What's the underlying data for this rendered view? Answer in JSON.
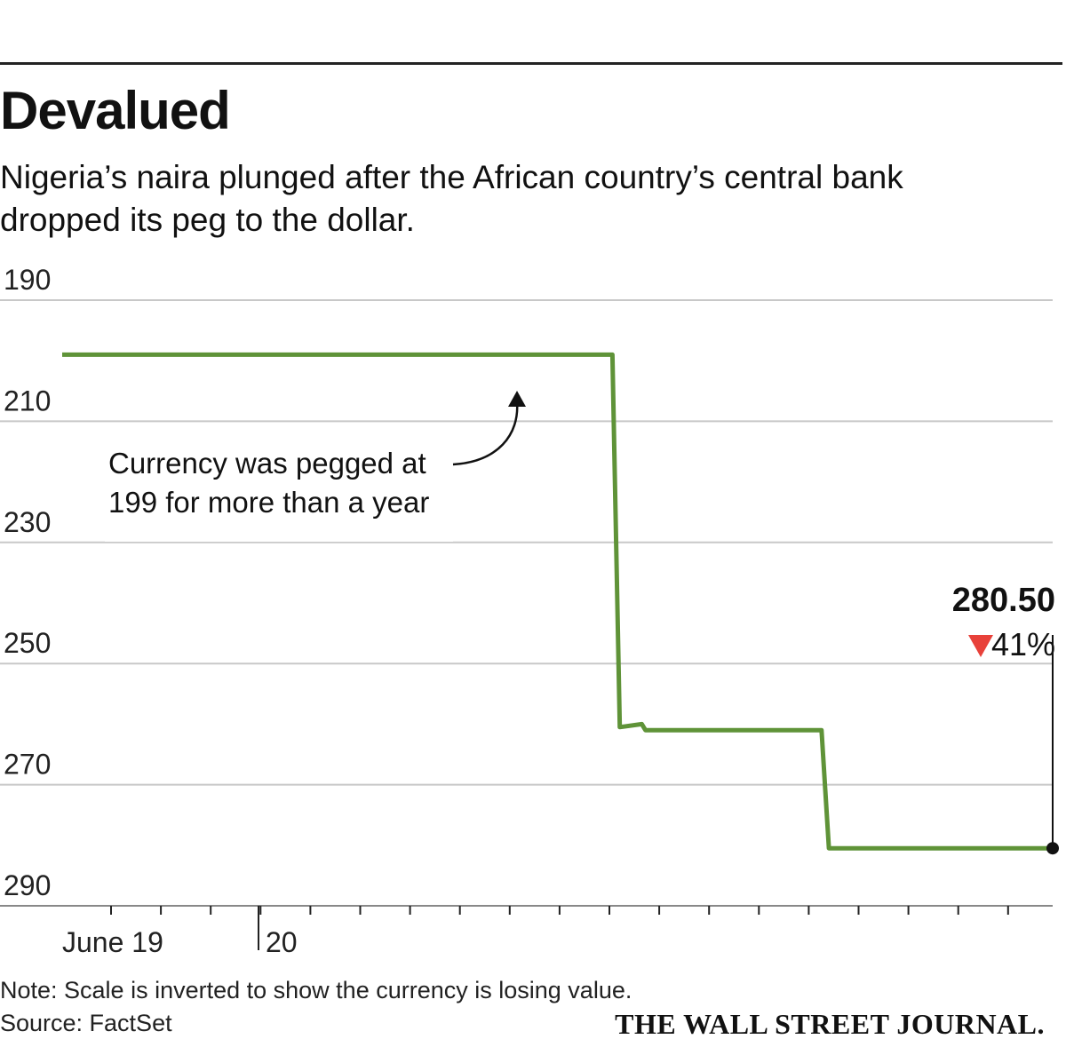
{
  "header": {
    "title": "Devalued",
    "subtitle": "Nigeria’s naira plunged after the African country’s central bank dropped its peg to the dollar."
  },
  "chart_data": {
    "type": "line",
    "title": "Devalued",
    "subtitle": "Nigeria’s naira plunged after the African country’s central bank dropped its peg to the dollar.",
    "y_inverted": true,
    "ylim": [
      190,
      290
    ],
    "y_ticks": [
      "190",
      "210",
      "230",
      "250",
      "270",
      "290"
    ],
    "x_tick_labels": [
      {
        "label": "June 19",
        "day": 19
      },
      {
        "label": "20",
        "day": 20
      }
    ],
    "x_range_days": [
      18.7,
      24.1
    ],
    "series": [
      {
        "color": "#5f9338",
        "points": [
          [
            18.7,
            199
          ],
          [
            19.4,
            199
          ],
          [
            20.1,
            199
          ],
          [
            20.8,
            199
          ],
          [
            21.7,
            199
          ],
          [
            21.74,
            260.5
          ],
          [
            21.86,
            260.0
          ],
          [
            21.88,
            261.0
          ],
          [
            22.84,
            261.0
          ],
          [
            22.88,
            280.5
          ],
          [
            24.1,
            280.5
          ]
        ]
      }
    ],
    "annotation": {
      "line1": "Currency was pegged at",
      "line2": "199 for more than a year"
    },
    "last_value": {
      "value_label": "280.50",
      "change_label": "41%",
      "direction": "down",
      "arrow_color": "#e8413a"
    },
    "grid": true
  },
  "footer": {
    "note": "Note: Scale is inverted to show the currency is losing value.",
    "source": "Source: FactSet",
    "publisher": "THE WALL STREET JOURNAL."
  },
  "colors": {
    "line": "#5f9338",
    "grid": "#c8c8c8",
    "down_arrow": "#e8413a"
  }
}
